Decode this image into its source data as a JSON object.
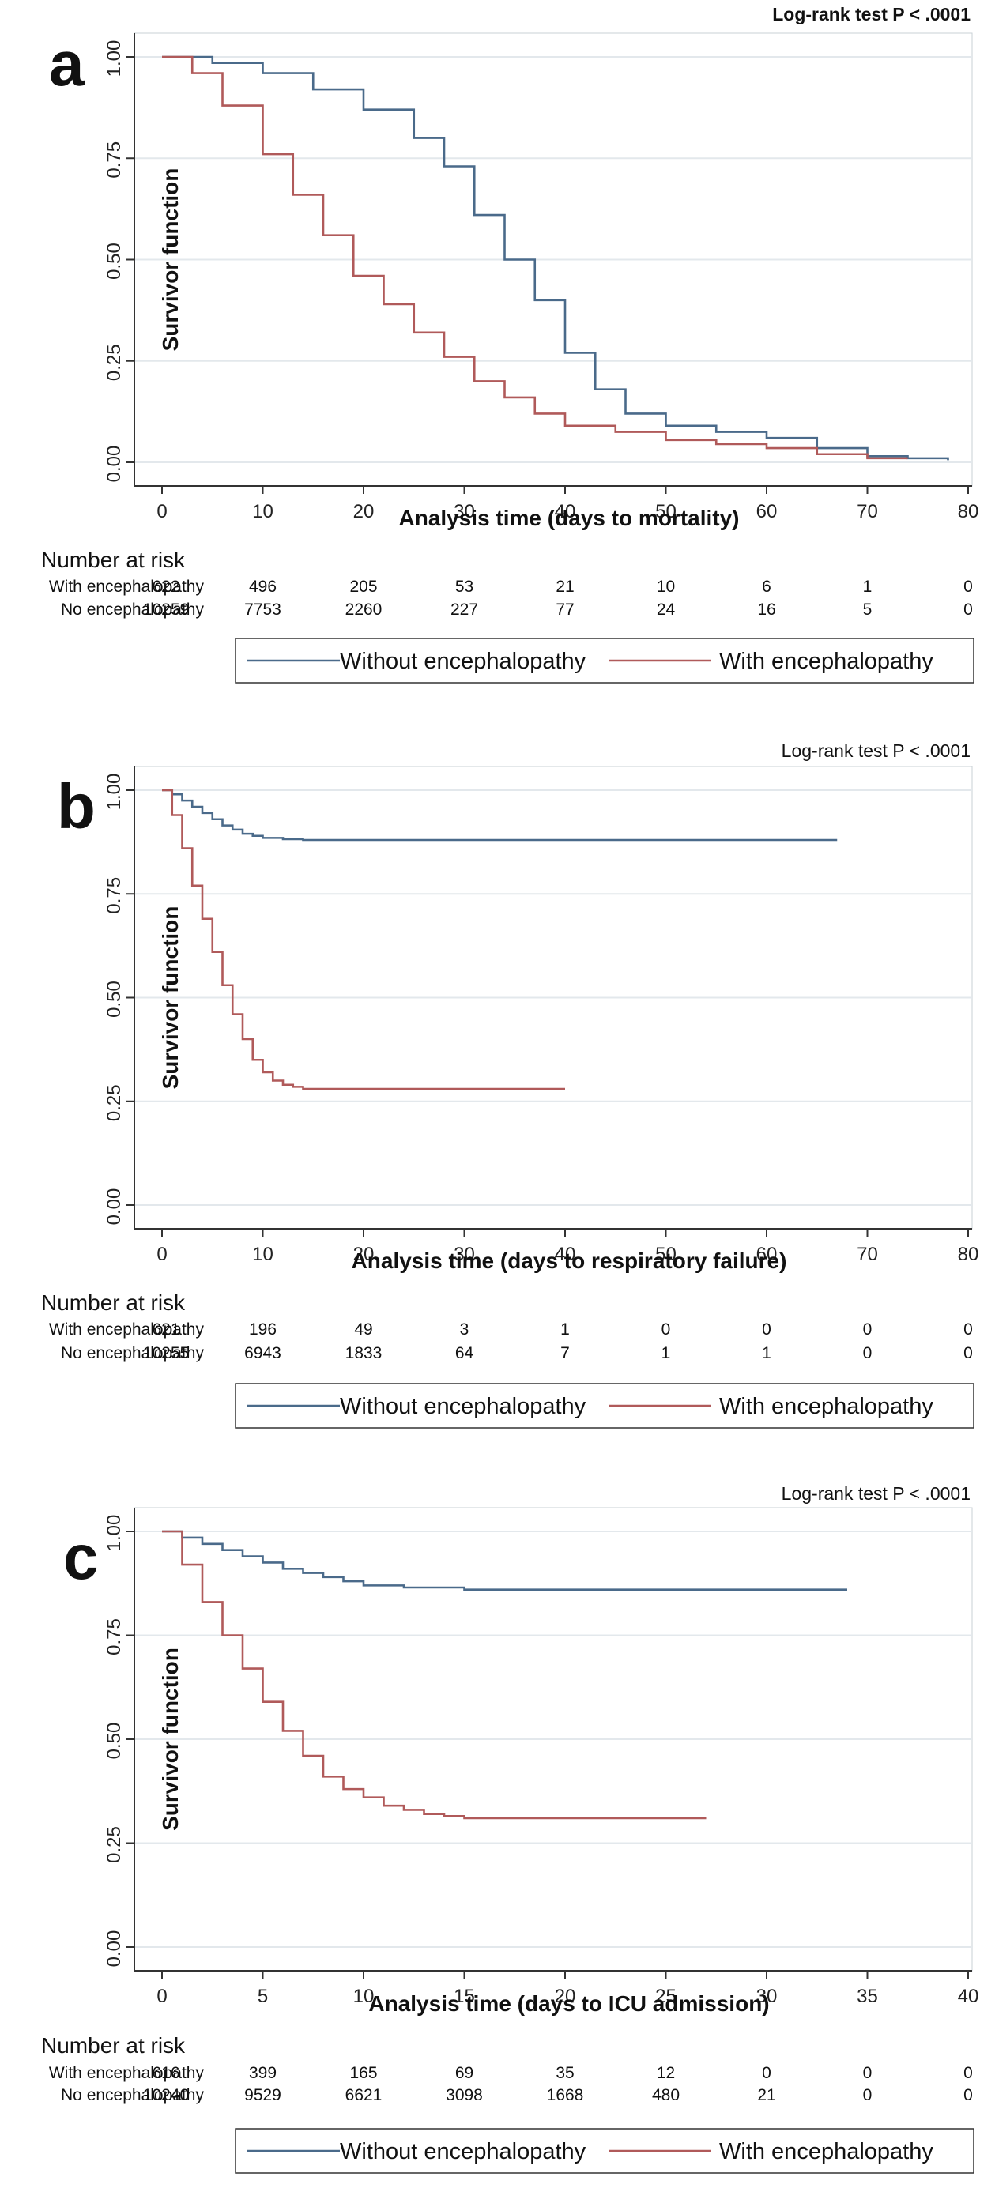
{
  "colors": {
    "without": "#4a6a8a",
    "with": "#b05a5a",
    "grid": "#e3e8ec",
    "plot_bg": "#ffffff"
  },
  "chart_data": [
    {
      "panel": "a",
      "type": "line",
      "title": "Log-rank test P < .0001",
      "xlabel": "Analysis time (days to mortality)",
      "ylabel": "Survivor function",
      "xlim": [
        0,
        80
      ],
      "ylim": [
        0,
        1
      ],
      "x_ticks": [
        "0",
        "10",
        "20",
        "30",
        "40",
        "50",
        "60",
        "70",
        "80"
      ],
      "y_ticks": [
        "0.00",
        "0.25",
        "0.50",
        "0.75",
        "1.00"
      ],
      "grid": true,
      "legend_position": "bottom",
      "series": [
        {
          "name": "Without encephalopathy",
          "key": "without",
          "x": [
            0,
            5,
            10,
            15,
            20,
            25,
            28,
            31,
            34,
            37,
            40,
            43,
            46,
            50,
            55,
            60,
            65,
            70,
            74,
            78
          ],
          "y": [
            1.0,
            0.985,
            0.96,
            0.92,
            0.87,
            0.8,
            0.73,
            0.61,
            0.5,
            0.4,
            0.27,
            0.18,
            0.12,
            0.09,
            0.075,
            0.06,
            0.035,
            0.015,
            0.01,
            0.005
          ]
        },
        {
          "name": "With encephalopathy",
          "key": "with",
          "x": [
            0,
            3,
            6,
            10,
            13,
            16,
            19,
            22,
            25,
            28,
            31,
            34,
            37,
            40,
            45,
            50,
            55,
            60,
            65,
            70,
            74
          ],
          "y": [
            1.0,
            0.96,
            0.88,
            0.76,
            0.66,
            0.56,
            0.46,
            0.39,
            0.32,
            0.26,
            0.2,
            0.16,
            0.12,
            0.09,
            0.075,
            0.055,
            0.045,
            0.035,
            0.02,
            0.01,
            0.01
          ]
        }
      ],
      "risk_table": {
        "header": "Number at risk",
        "rows": [
          {
            "label": "With encephalopathy",
            "values": [
              "622",
              "496",
              "205",
              "53",
              "21",
              "10",
              "6",
              "1",
              "0"
            ]
          },
          {
            "label": "No encephalopathy",
            "values": [
              "10259",
              "7753",
              "2260",
              "227",
              "77",
              "24",
              "16",
              "5",
              "0"
            ]
          }
        ]
      },
      "legend": [
        "Without encephalopathy",
        "With encephalopathy"
      ]
    },
    {
      "panel": "b",
      "type": "line",
      "title": "Log-rank test P < .0001",
      "xlabel": "Analysis time (days to respiratory failure)",
      "ylabel": "Survivor function",
      "xlim": [
        0,
        80
      ],
      "ylim": [
        0,
        1
      ],
      "x_ticks": [
        "0",
        "10",
        "20",
        "30",
        "40",
        "50",
        "60",
        "70",
        "80"
      ],
      "y_ticks": [
        "0.00",
        "0.25",
        "0.50",
        "0.75",
        "1.00"
      ],
      "grid": true,
      "legend_position": "bottom",
      "series": [
        {
          "name": "Without encephalopathy",
          "key": "without",
          "x": [
            0,
            1,
            2,
            3,
            4,
            5,
            6,
            7,
            8,
            9,
            10,
            12,
            14,
            20,
            67
          ],
          "y": [
            1.0,
            0.99,
            0.975,
            0.96,
            0.945,
            0.93,
            0.915,
            0.905,
            0.895,
            0.89,
            0.885,
            0.882,
            0.88,
            0.88,
            0.88
          ]
        },
        {
          "name": "With encephalopathy",
          "key": "with",
          "x": [
            0,
            1,
            2,
            3,
            4,
            5,
            6,
            7,
            8,
            9,
            10,
            11,
            12,
            13,
            14,
            40
          ],
          "y": [
            1.0,
            0.94,
            0.86,
            0.77,
            0.69,
            0.61,
            0.53,
            0.46,
            0.4,
            0.35,
            0.32,
            0.3,
            0.29,
            0.285,
            0.28,
            0.28
          ]
        }
      ],
      "risk_table": {
        "header": "Number at risk",
        "rows": [
          {
            "label": "With encephalopathy",
            "values": [
              "621",
              "196",
              "49",
              "3",
              "1",
              "0",
              "0",
              "0",
              "0"
            ]
          },
          {
            "label": "No encephalopathy",
            "values": [
              "10255",
              "6943",
              "1833",
              "64",
              "7",
              "1",
              "1",
              "0",
              "0"
            ]
          }
        ]
      },
      "legend": [
        "Without encephalopathy",
        "With encephalopathy"
      ]
    },
    {
      "panel": "c",
      "type": "line",
      "title": "Log-rank test P < .0001",
      "xlabel": "Analysis time (days to ICU admission)",
      "ylabel": "Survivor function",
      "xlim": [
        0,
        40
      ],
      "ylim": [
        0,
        1
      ],
      "x_ticks": [
        "0",
        "5",
        "10",
        "15",
        "20",
        "25",
        "30",
        "35",
        "40"
      ],
      "y_ticks": [
        "0.00",
        "0.25",
        "0.50",
        "0.75",
        "1.00"
      ],
      "grid": true,
      "legend_position": "bottom",
      "series": [
        {
          "name": "Without encephalopathy",
          "key": "without",
          "x": [
            0,
            1,
            2,
            3,
            4,
            5,
            6,
            7,
            8,
            9,
            10,
            12,
            15,
            20,
            34
          ],
          "y": [
            1.0,
            0.985,
            0.97,
            0.955,
            0.94,
            0.925,
            0.91,
            0.9,
            0.89,
            0.88,
            0.87,
            0.865,
            0.86,
            0.86,
            0.86
          ]
        },
        {
          "name": "With encephalopathy",
          "key": "with",
          "x": [
            0,
            1,
            2,
            3,
            4,
            5,
            6,
            7,
            8,
            9,
            10,
            11,
            12,
            13,
            14,
            15,
            27
          ],
          "y": [
            1.0,
            0.92,
            0.83,
            0.75,
            0.67,
            0.59,
            0.52,
            0.46,
            0.41,
            0.38,
            0.36,
            0.34,
            0.33,
            0.32,
            0.315,
            0.31,
            0.31
          ]
        }
      ],
      "risk_table": {
        "header": "Number at risk",
        "rows": [
          {
            "label": "With encephalopathy",
            "values": [
              "616",
              "399",
              "165",
              "69",
              "35",
              "12",
              "0",
              "0",
              "0"
            ]
          },
          {
            "label": "No encephalopathy",
            "values": [
              "10240",
              "9529",
              "6621",
              "3098",
              "1668",
              "480",
              "21",
              "0",
              "0"
            ]
          }
        ]
      },
      "legend": [
        "Without encephalopathy",
        "With encephalopathy"
      ]
    }
  ],
  "panels": [
    {
      "letter": "a"
    },
    {
      "letter": "b"
    },
    {
      "letter": "c"
    }
  ]
}
